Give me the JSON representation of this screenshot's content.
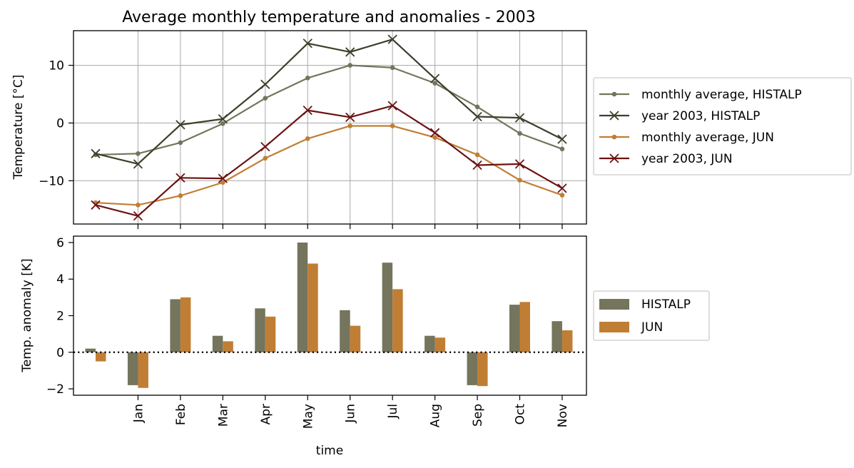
{
  "chart_data": [
    {
      "type": "line",
      "title": "Average monthly temperature and anomalies - 2003",
      "ylabel": "Temperature [°C]",
      "ylim": [
        -17.5,
        16
      ],
      "yticks": [
        -10,
        0,
        10
      ],
      "ytick_labels": [
        "−10",
        "0",
        "10"
      ],
      "grid": true,
      "legend_position": "right",
      "x": [
        0,
        1,
        2,
        3,
        4,
        5,
        6,
        7,
        8,
        9,
        10,
        11
      ],
      "series": [
        {
          "name": "monthly average, HISTALP",
          "marker": "dot",
          "color": "#75745c",
          "values": [
            -5.5,
            -5.3,
            -3.4,
            -0.1,
            4.3,
            7.8,
            10.0,
            9.6,
            6.9,
            2.8,
            -1.8,
            -4.5
          ]
        },
        {
          "name": "year 2003, HISTALP",
          "marker": "x",
          "color": "#3d3f2a",
          "values": [
            -5.3,
            -7.1,
            -0.3,
            0.7,
            6.7,
            13.8,
            12.3,
            14.5,
            7.7,
            1.1,
            0.9,
            -2.8
          ]
        },
        {
          "name": "monthly average, JUN",
          "marker": "dot",
          "color": "#c07e35",
          "values": [
            -13.8,
            -14.2,
            -12.6,
            -10.3,
            -6.1,
            -2.7,
            -0.5,
            -0.5,
            -2.5,
            -5.5,
            -9.9,
            -12.5
          ]
        },
        {
          "name": "year 2003, JUN",
          "marker": "x",
          "color": "#6c1313",
          "values": [
            -14.2,
            -16.1,
            -9.5,
            -9.6,
            -4.1,
            2.2,
            1.0,
            3.0,
            -1.7,
            -7.3,
            -7.1,
            -11.3
          ]
        }
      ]
    },
    {
      "type": "bar",
      "ylabel": "Temp. anomaly [K]",
      "xlabel": "time",
      "ylim": [
        -2.35,
        6.35
      ],
      "yticks": [
        -2,
        0,
        2,
        4,
        6
      ],
      "ytick_labels": [
        "−2",
        "0",
        "2",
        "4",
        "6"
      ],
      "zero_line": "dotted",
      "legend_position": "right",
      "categories": [
        "",
        "Jan",
        "Feb",
        "Mar",
        "Apr",
        "May",
        "Jun",
        "Jul",
        "Aug",
        "Sep",
        "Oct",
        "Nov"
      ],
      "series": [
        {
          "name": "HISTALP",
          "color": "#75745c",
          "values": [
            0.2,
            -1.8,
            2.9,
            0.9,
            2.4,
            6.0,
            2.3,
            4.9,
            0.9,
            -1.8,
            2.6,
            1.7
          ]
        },
        {
          "name": "JUN",
          "color": "#c07e35",
          "values": [
            -0.5,
            -1.95,
            3.0,
            0.6,
            1.95,
            4.85,
            1.45,
            3.45,
            0.8,
            -1.85,
            2.75,
            1.2
          ]
        }
      ]
    }
  ]
}
